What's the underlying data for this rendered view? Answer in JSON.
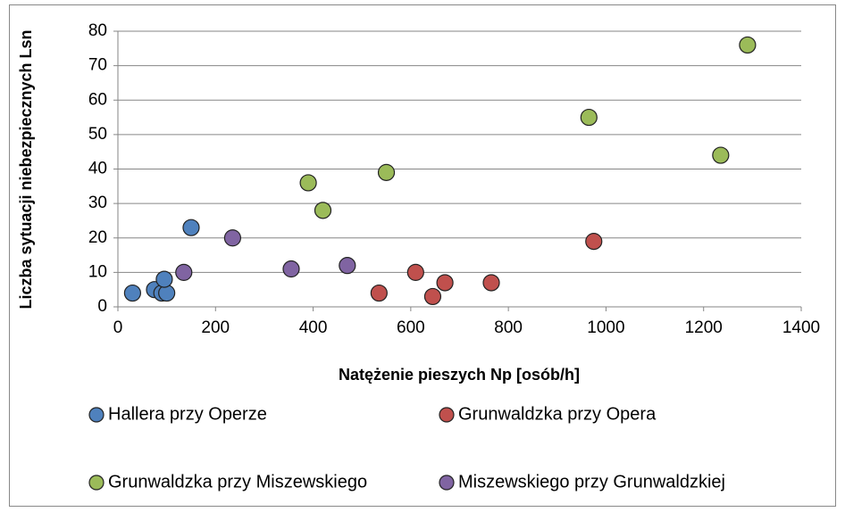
{
  "chart_data": {
    "type": "scatter",
    "x_label": "Natężenie pieszych Np [osób/h]",
    "y_label": "Liczba sytuacji niebezpiecznych Lsn",
    "xlim": [
      0,
      1400
    ],
    "xticks": [
      0,
      200,
      400,
      600,
      800,
      1000,
      1200,
      1400
    ],
    "ylim": [
      0,
      80
    ],
    "yticks": [
      0,
      10,
      20,
      30,
      40,
      50,
      60,
      70,
      80
    ],
    "grid": true,
    "legend": "bottom",
    "series": [
      {
        "name": "Hallera przy Operze",
        "color": "#4f81bd",
        "x": [
          30,
          75,
          90,
          100,
          95,
          150
        ],
        "values": [
          4,
          5,
          4,
          4,
          8,
          23
        ]
      },
      {
        "name": "Grunwaldzka przy Opera",
        "color": "#c0504d",
        "x": [
          535,
          610,
          645,
          670,
          765,
          975
        ],
        "values": [
          4,
          10,
          3,
          7,
          7,
          19
        ]
      },
      {
        "name": "Grunwaldzka przy Miszewskiego",
        "color": "#9bbb59",
        "x": [
          390,
          420,
          550,
          965,
          1235,
          1290
        ],
        "values": [
          36,
          28,
          39,
          55,
          44,
          76
        ]
      },
      {
        "name": "Miszewskiego przy Grunwaldzkiej",
        "color": "#8064a2",
        "x": [
          135,
          235,
          355,
          470
        ],
        "values": [
          10,
          20,
          11,
          12
        ]
      }
    ]
  }
}
